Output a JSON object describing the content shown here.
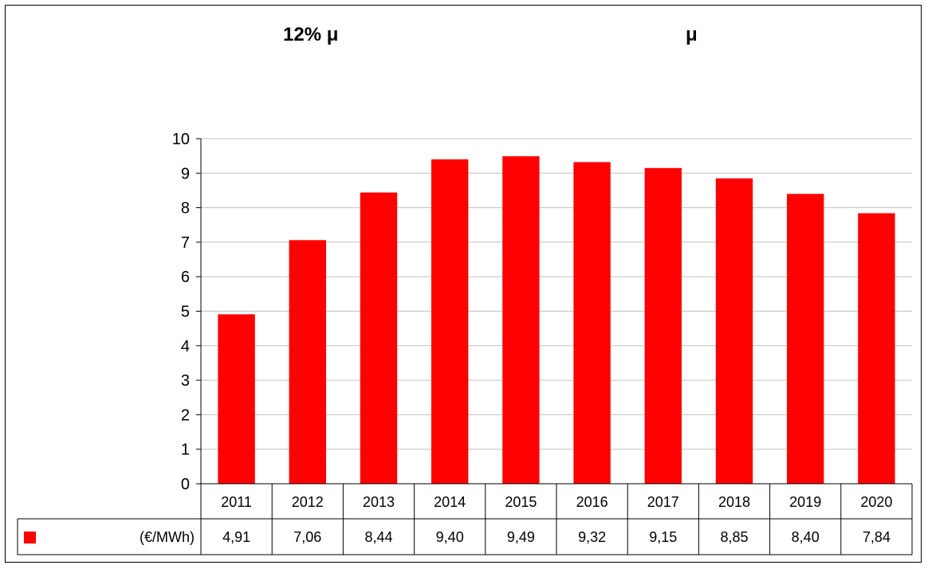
{
  "titles": {
    "left": "12% μ",
    "right": "μ"
  },
  "chart_data": {
    "type": "bar",
    "categories": [
      "2011",
      "2012",
      "2013",
      "2014",
      "2015",
      "2016",
      "2017",
      "2018",
      "2019",
      "2020"
    ],
    "series": [
      {
        "name": "(€/MWh)",
        "values": [
          4.91,
          7.06,
          8.44,
          9.4,
          9.49,
          9.32,
          9.15,
          8.85,
          8.4,
          7.84
        ],
        "color": "#ff0000"
      }
    ],
    "value_labels": [
      "4,91",
      "7,06",
      "8,44",
      "9,40",
      "9,49",
      "9,32",
      "9,15",
      "8,85",
      "8,40",
      "7,84"
    ],
    "ylim": [
      0,
      10
    ],
    "yticks": [
      0,
      1,
      2,
      3,
      4,
      5,
      6,
      7,
      8,
      9,
      10
    ],
    "grid": true,
    "data_table": true,
    "gridline_color": "#c0c0c0"
  }
}
